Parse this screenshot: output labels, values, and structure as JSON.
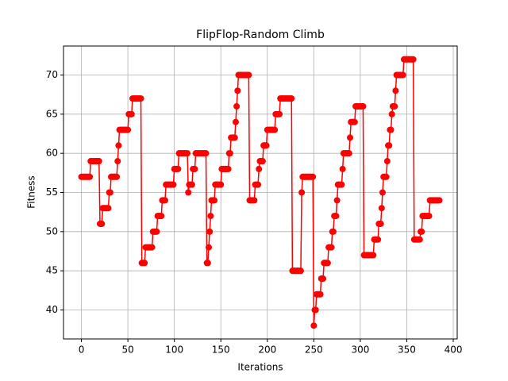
{
  "chart_data": {
    "type": "line",
    "title": "FlipFlop-Random Climb",
    "x_label": "Iterations",
    "y_label": "Fitness",
    "series": [
      {
        "color": "#ff0000",
        "values": [
          57,
          57,
          57,
          57,
          57,
          57,
          57,
          57,
          57,
          57,
          59,
          59,
          59,
          59,
          59,
          59,
          59,
          59,
          59,
          59,
          51,
          51,
          51,
          53,
          53,
          53,
          53,
          53,
          53,
          53,
          55,
          55,
          57,
          57,
          57,
          57,
          57,
          57,
          57,
          59,
          61,
          63,
          63,
          63,
          63,
          63,
          63,
          63,
          63,
          63,
          63,
          65,
          65,
          65,
          65,
          67,
          67,
          67,
          67,
          67,
          67,
          67,
          67,
          67,
          67,
          46,
          46,
          46,
          46,
          48,
          48,
          48,
          48,
          48,
          48,
          48,
          48,
          50,
          50,
          50,
          50,
          50,
          52,
          52,
          52,
          52,
          52,
          54,
          54,
          54,
          54,
          56,
          56,
          56,
          56,
          56,
          56,
          56,
          56,
          56,
          58,
          58,
          58,
          58,
          58,
          60,
          60,
          60,
          60,
          60,
          60,
          60,
          60,
          60,
          60,
          55,
          56,
          56,
          56,
          56,
          58,
          58,
          58,
          60,
          60,
          60,
          60,
          60,
          60,
          60,
          60,
          60,
          60,
          60,
          60,
          46,
          46,
          48,
          50,
          52,
          54,
          54,
          54,
          54,
          56,
          56,
          56,
          56,
          56,
          56,
          56,
          58,
          58,
          58,
          58,
          58,
          58,
          58,
          58,
          60,
          60,
          62,
          62,
          62,
          62,
          62,
          64,
          66,
          68,
          70,
          70,
          70,
          70,
          70,
          70,
          70,
          70,
          70,
          70,
          70,
          70,
          54,
          54,
          54,
          54,
          54,
          54,
          56,
          56,
          56,
          56,
          58,
          59,
          59,
          59,
          59,
          61,
          61,
          61,
          61,
          63,
          63,
          63,
          63,
          63,
          63,
          63,
          63,
          63,
          65,
          65,
          65,
          65,
          65,
          67,
          67,
          67,
          67,
          67,
          67,
          67,
          67,
          67,
          67,
          67,
          67,
          67,
          45,
          45,
          45,
          45,
          45,
          45,
          45,
          45,
          45,
          45,
          55,
          57,
          57,
          57,
          57,
          57,
          57,
          57,
          57,
          57,
          57,
          57,
          57,
          38,
          40,
          40,
          42,
          42,
          42,
          42,
          42,
          44,
          44,
          44,
          46,
          46,
          46,
          46,
          46,
          48,
          48,
          48,
          48,
          50,
          50,
          52,
          52,
          52,
          54,
          56,
          56,
          56,
          56,
          56,
          58,
          60,
          60,
          60,
          60,
          60,
          60,
          60,
          62,
          64,
          64,
          64,
          64,
          64,
          66,
          66,
          66,
          66,
          66,
          66,
          66,
          66,
          66,
          47,
          47,
          47,
          47,
          47,
          47,
          47,
          47,
          47,
          47,
          47,
          49,
          49,
          49,
          49,
          49,
          51,
          51,
          51,
          53,
          55,
          57,
          57,
          57,
          57,
          59,
          61,
          61,
          63,
          63,
          65,
          66,
          66,
          66,
          68,
          70,
          70,
          70,
          70,
          70,
          70,
          70,
          70,
          72,
          72,
          72,
          72,
          72,
          72,
          72,
          72,
          72,
          72,
          72,
          49,
          49,
          49,
          49,
          49,
          49,
          49,
          50,
          50,
          52,
          52,
          52,
          52,
          52,
          52,
          52,
          52,
          54,
          54,
          54,
          54,
          54,
          54,
          54,
          54,
          54,
          54,
          54
        ]
      }
    ],
    "xlim": [
      -19.25,
      404.25
    ],
    "xticks": [
      0,
      50,
      100,
      150,
      200,
      250,
      300,
      350,
      400
    ],
    "ylim": [
      36.3,
      73.7
    ],
    "yticks": [
      40,
      45,
      50,
      55,
      60,
      65,
      70
    ],
    "grid": true
  }
}
